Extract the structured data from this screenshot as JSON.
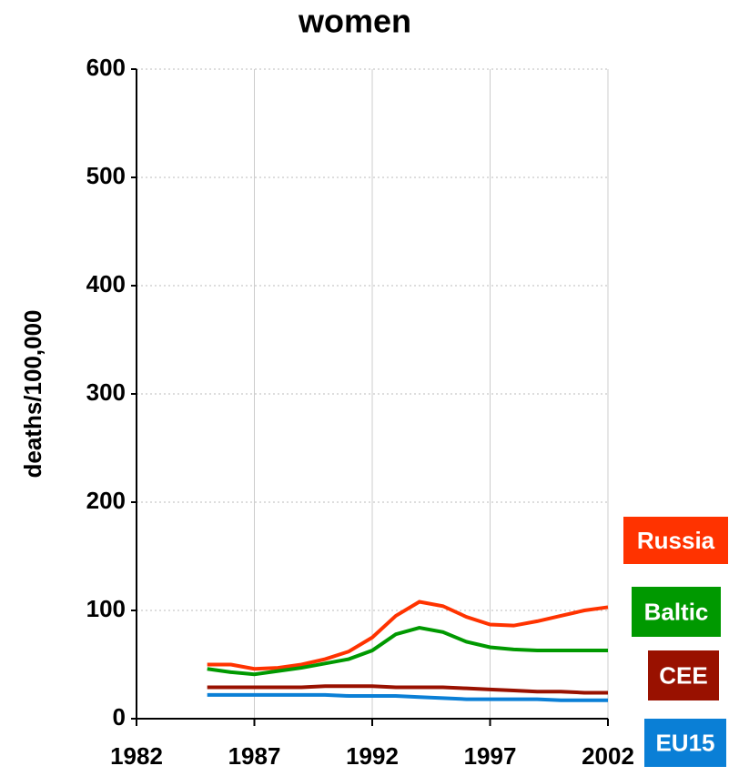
{
  "chart_data": {
    "type": "line",
    "title": "women",
    "y_label": "deaths/100,000",
    "x": [
      1985,
      1986,
      1987,
      1988,
      1989,
      1990,
      1991,
      1992,
      1993,
      1994,
      1995,
      1996,
      1997,
      1998,
      1999,
      2000,
      2001,
      2002
    ],
    "xlim": [
      1982,
      2002
    ],
    "xticks": [
      1982,
      1987,
      1992,
      1997,
      2002
    ],
    "ylim": [
      0,
      600
    ],
    "yticks": [
      0,
      100,
      200,
      300,
      400,
      500,
      600
    ],
    "grid": true,
    "series": [
      {
        "name": "Russia",
        "color": "#ff3300",
        "values": [
          50,
          50,
          46,
          47,
          50,
          55,
          62,
          75,
          95,
          108,
          104,
          94,
          87,
          86,
          90,
          95,
          100,
          103
        ]
      },
      {
        "name": "Baltic",
        "color": "#009900",
        "values": [
          46,
          43,
          41,
          44,
          47,
          51,
          55,
          63,
          78,
          84,
          80,
          71,
          66,
          64,
          63,
          63,
          63,
          63
        ]
      },
      {
        "name": "CEE",
        "color": "#991100",
        "values": [
          29,
          29,
          29,
          29,
          29,
          30,
          30,
          30,
          29,
          29,
          29,
          28,
          27,
          26,
          25,
          25,
          24,
          24
        ]
      },
      {
        "name": "EU15",
        "color": "#0a7fd6",
        "values": [
          22,
          22,
          22,
          22,
          22,
          22,
          21,
          21,
          21,
          20,
          19,
          18,
          18,
          18,
          18,
          17,
          17,
          17
        ]
      }
    ]
  }
}
